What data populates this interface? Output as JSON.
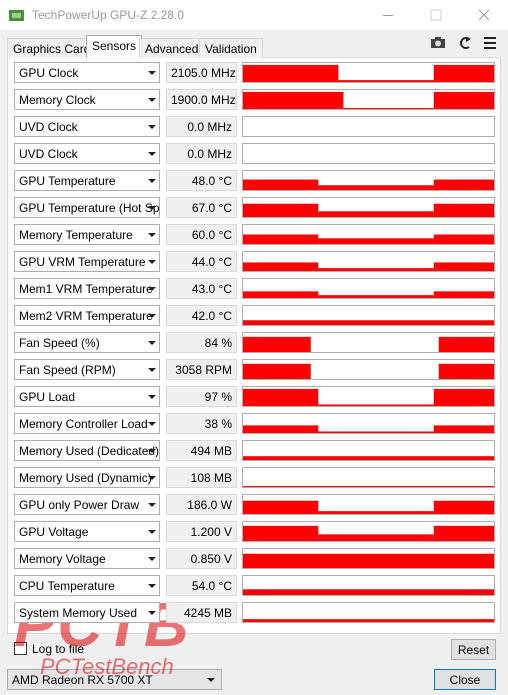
{
  "window": {
    "title": "TechPowerUp GPU-Z 2.28.0"
  },
  "tabs": [
    "Graphics Card",
    "Sensors",
    "Advanced",
    "Validation"
  ],
  "sensors": [
    {
      "name": "GPU Clock",
      "value": "2105.0 MHz"
    },
    {
      "name": "Memory Clock",
      "value": "1900.0 MHz"
    },
    {
      "name": "UVD Clock",
      "value": "0.0 MHz"
    },
    {
      "name": "UVD Clock",
      "value": "0.0 MHz"
    },
    {
      "name": "GPU Temperature",
      "value": "48.0 °C"
    },
    {
      "name": "GPU Temperature (Hot Spot)",
      "value": "67.0 °C"
    },
    {
      "name": "Memory Temperature",
      "value": "60.0 °C"
    },
    {
      "name": "GPU VRM Temperature",
      "value": "44.0 °C"
    },
    {
      "name": "Mem1 VRM Temperature",
      "value": "43.0 °C"
    },
    {
      "name": "Mem2 VRM Temperature",
      "value": "42.0 °C"
    },
    {
      "name": "Fan Speed (%)",
      "value": "84 %"
    },
    {
      "name": "Fan Speed (RPM)",
      "value": "3058 RPM"
    },
    {
      "name": "GPU Load",
      "value": "97 %"
    },
    {
      "name": "Memory Controller Load",
      "value": "38 %"
    },
    {
      "name": "Memory Used (Dedicated)",
      "value": "494 MB"
    },
    {
      "name": "Memory Used (Dynamic)",
      "value": "108 MB"
    },
    {
      "name": "GPU only Power Draw",
      "value": "186.0 W"
    },
    {
      "name": "GPU Voltage",
      "value": "1.200 V"
    },
    {
      "name": "Memory Voltage",
      "value": "0.850 V"
    },
    {
      "name": "CPU Temperature",
      "value": "54.0 °C"
    },
    {
      "name": "System Memory Used",
      "value": "4245 MB"
    }
  ],
  "log_to_file": "Log to file",
  "reset": "Reset",
  "gpu_select": "AMD Radeon RX 5700 XT",
  "close": "Close",
  "watermark": {
    "logo": "PCTB",
    "site": "PCTestBench"
  }
}
